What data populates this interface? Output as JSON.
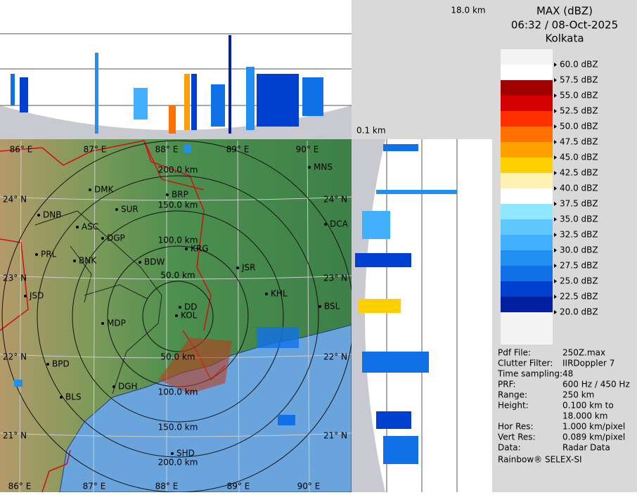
{
  "top_panel": {
    "height_label": "18.0 km"
  },
  "side_panel": {
    "height_label": "0.1 km"
  },
  "header": {
    "product": "MAX (dBZ)",
    "datetime": "06:32 / 08-Oct-2025",
    "site": "Kolkata"
  },
  "legend": {
    "labels": [
      "60.0 dBZ",
      "57.5 dBZ",
      "55.0 dBZ",
      "52.5 dBZ",
      "50.0 dBZ",
      "47.5 dBZ",
      "45.0 dBZ",
      "42.5 dBZ",
      "40.0 dBZ",
      "37.5 dBZ",
      "35.0 dBZ",
      "32.5 dBZ",
      "30.0 dBZ",
      "27.5 dBZ",
      "25.0 dBZ",
      "22.5 dBZ",
      "20.0 dBZ"
    ],
    "colors": [
      "#ffffff",
      "#a00000",
      "#d40000",
      "#ff3000",
      "#ff7000",
      "#ffa000",
      "#ffd000",
      "#fff2b0",
      "#ffffff",
      "#90e8ff",
      "#60c8ff",
      "#40b0ff",
      "#2090f0",
      "#1070e8",
      "#0040d0",
      "#0020a0"
    ]
  },
  "map": {
    "lon_labels": [
      "86° E",
      "87° E",
      "88° E",
      "89° E",
      "90° E"
    ],
    "lat_labels": [
      "24° N",
      "23° N",
      "22° N",
      "21° N"
    ],
    "range_labels": [
      "50.0 km",
      "100.0 km",
      "150.0 km",
      "200.0 km"
    ],
    "cities": [
      "MNS",
      "DMK",
      "BRP",
      "SUR",
      "DNB",
      "ASC",
      "DGP",
      "DCA",
      "KRG",
      "PRL",
      "BNK",
      "BDW",
      "JSR",
      "KHL",
      "JSD",
      "BSL",
      "DD",
      "KOL",
      "MDP",
      "BPD",
      "DGH",
      "BLS",
      "SHD"
    ]
  },
  "info": {
    "rows": [
      [
        "Pdf File:",
        "250Z.max"
      ],
      [
        "Clutter Filter:",
        "IIRDoppler 7"
      ],
      [
        "Time sampling:",
        "48"
      ],
      [
        "PRF:",
        "600 Hz / 450 Hz"
      ],
      [
        "Range:",
        "250 km"
      ],
      [
        "Height:",
        "0.100 km to",
        "18.000 km"
      ],
      [
        "Hor Res:",
        "1.000 km/pixel"
      ],
      [
        "Vert Res:",
        "0.089 km/pixel"
      ],
      [
        "Data:",
        "Radar Data"
      ]
    ],
    "footer": "Rainbow® SELEX-SI"
  }
}
